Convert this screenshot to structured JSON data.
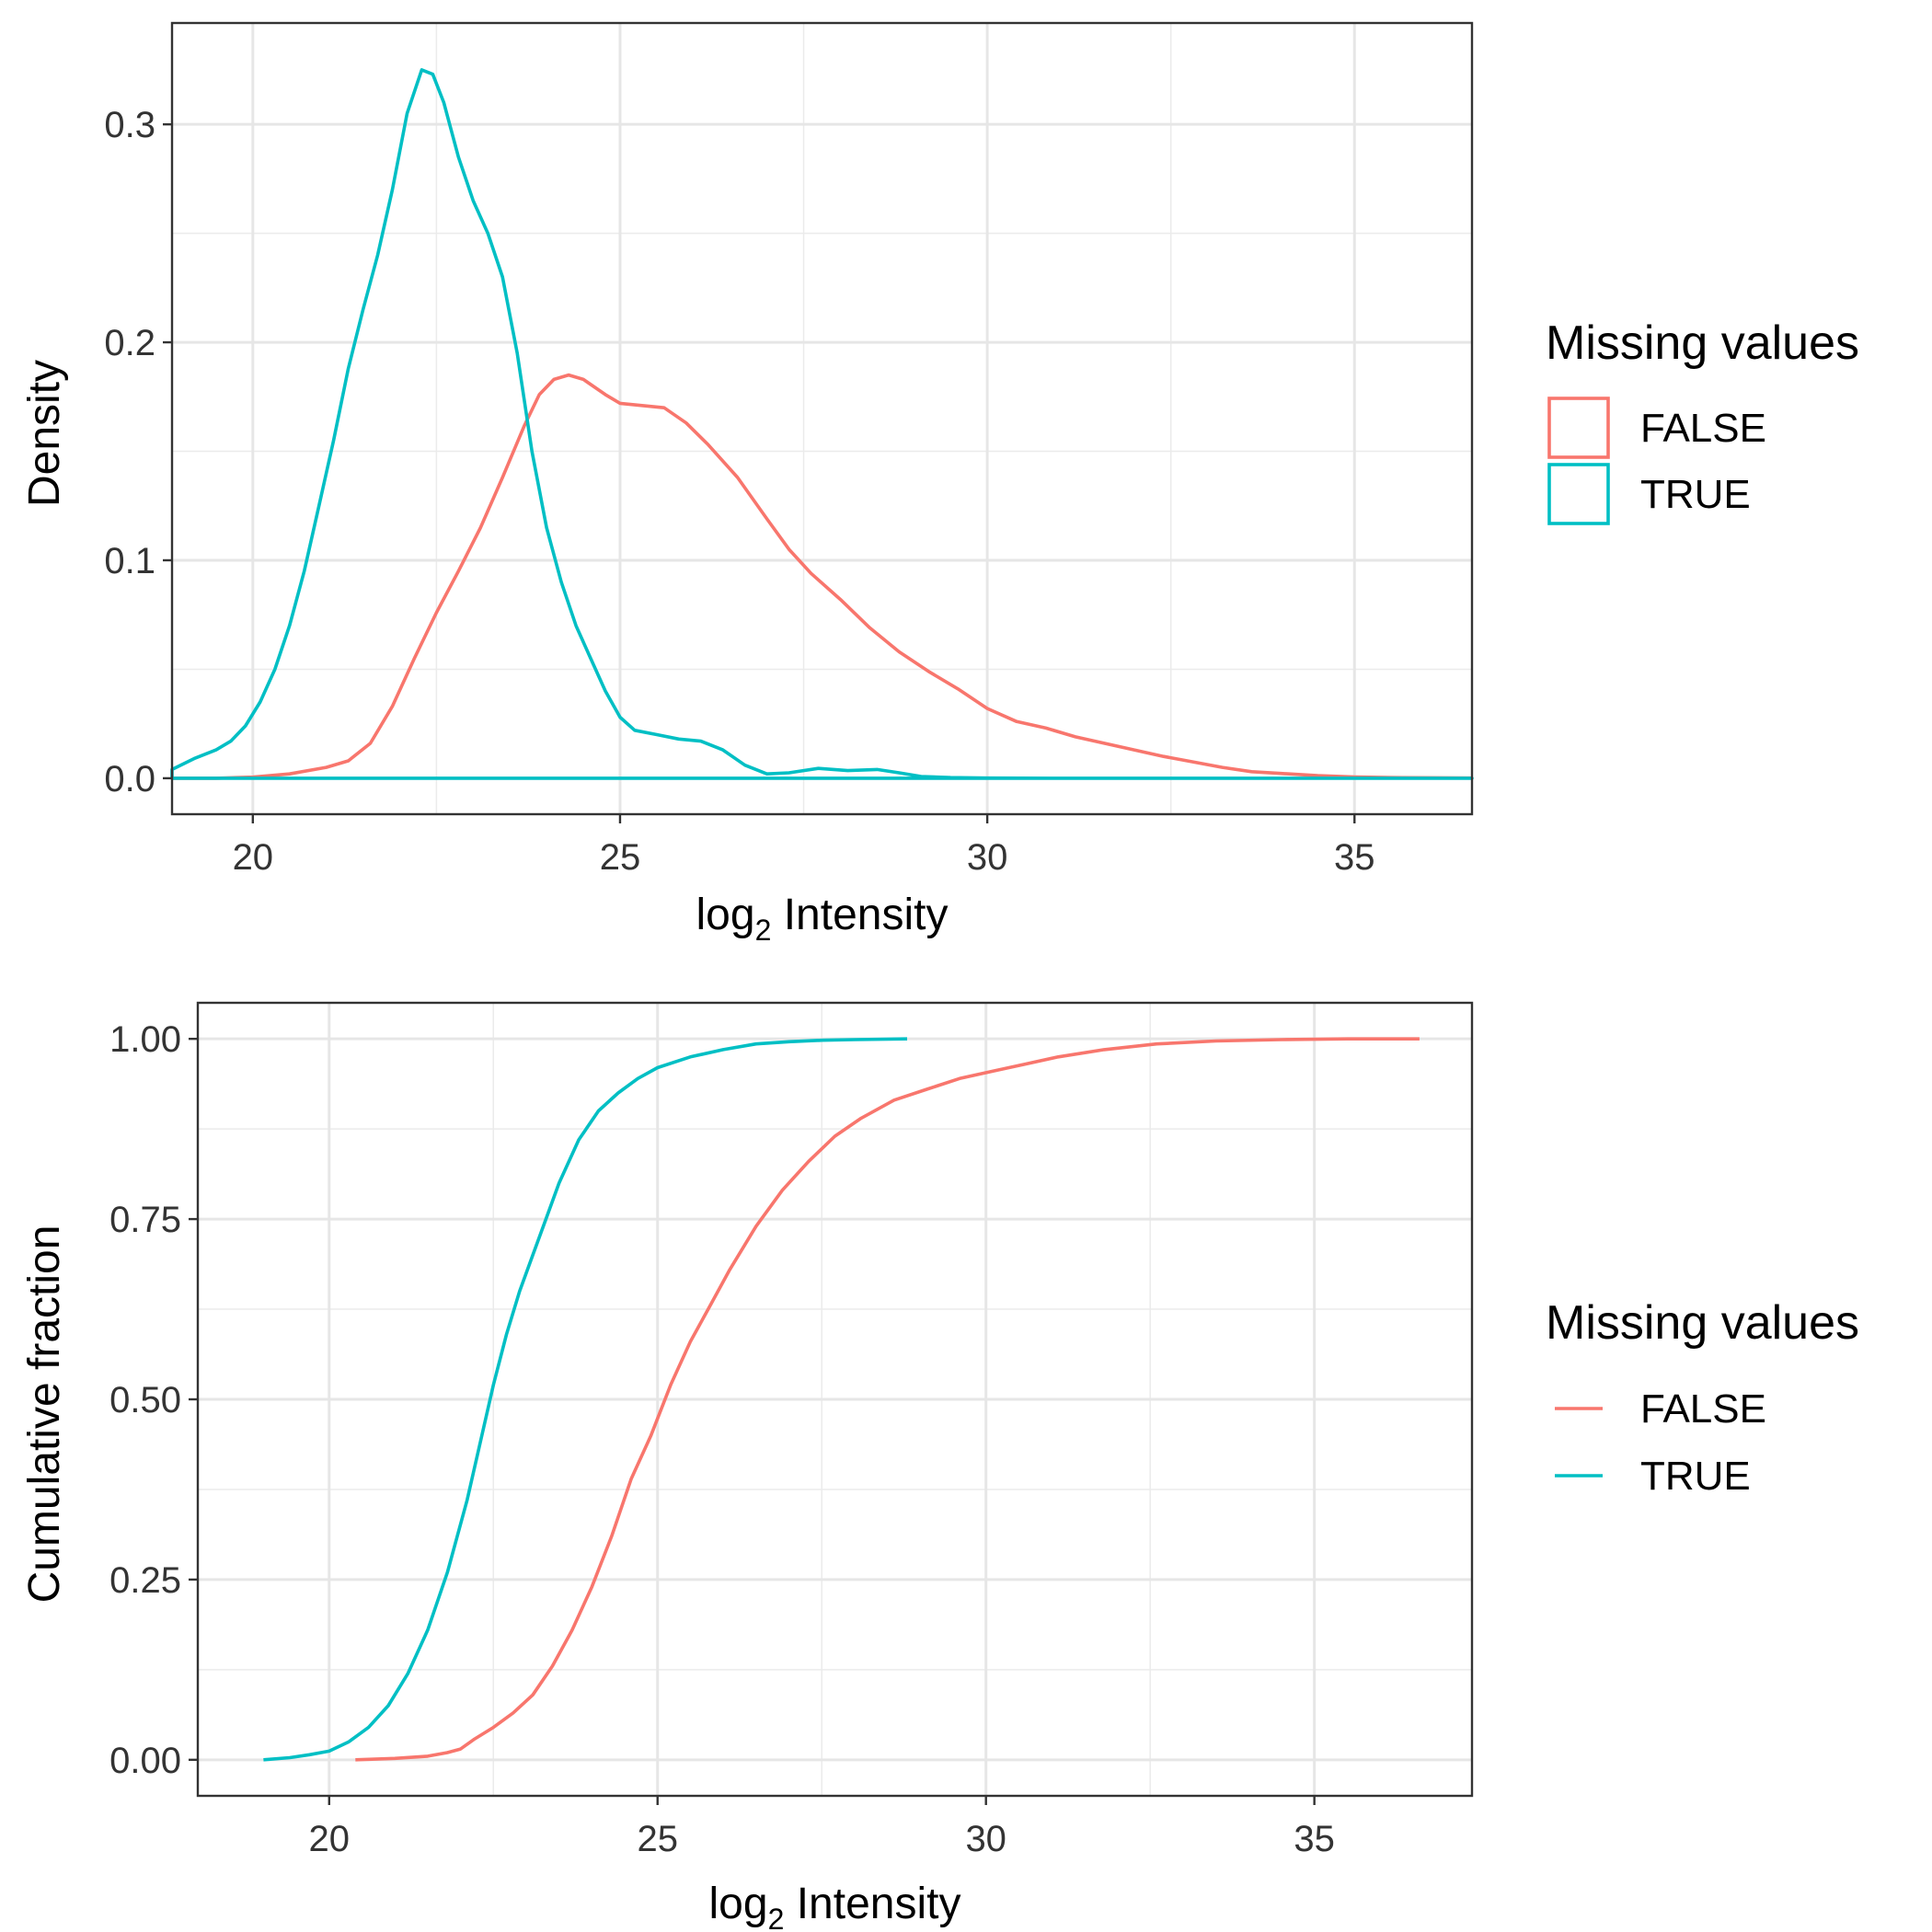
{
  "colors": {
    "FALSE": "#F8766D",
    "TRUE": "#00BFC4"
  },
  "chart_data": [
    {
      "type": "line",
      "variant": "density",
      "xlabel": {
        "prefix": "log",
        "subscript": "2",
        "suffix": " Intensity"
      },
      "ylabel": "Density",
      "xlim": [
        18.9,
        36.6
      ],
      "ylim": [
        0,
        0.33
      ],
      "xticks": [
        20,
        25,
        30,
        35
      ],
      "yticks": [
        0.0,
        0.1,
        0.2,
        0.3
      ],
      "ytick_labels": [
        "0.0",
        "0.1",
        "0.2",
        "0.3"
      ],
      "xtick_labels": [
        "20",
        "25",
        "30",
        "35"
      ],
      "grid": true,
      "legend": {
        "title": "Missing values",
        "key": "box",
        "placement": "right",
        "entries": [
          "FALSE",
          "TRUE"
        ]
      },
      "series": [
        {
          "name": "FALSE",
          "closed": false,
          "points": [
            [
              18.9,
              0.0
            ],
            [
              19.5,
              0.0
            ],
            [
              20.0,
              0.0005
            ],
            [
              20.5,
              0.002
            ],
            [
              21.0,
              0.005
            ],
            [
              21.3,
              0.008
            ],
            [
              21.6,
              0.016
            ],
            [
              21.9,
              0.033
            ],
            [
              22.2,
              0.055
            ],
            [
              22.5,
              0.076
            ],
            [
              22.8,
              0.095
            ],
            [
              23.1,
              0.115
            ],
            [
              23.4,
              0.138
            ],
            [
              23.7,
              0.162
            ],
            [
              23.9,
              0.176
            ],
            [
              24.1,
              0.183
            ],
            [
              24.3,
              0.185
            ],
            [
              24.5,
              0.183
            ],
            [
              24.8,
              0.176
            ],
            [
              25.0,
              0.172
            ],
            [
              25.3,
              0.171
            ],
            [
              25.6,
              0.17
            ],
            [
              25.9,
              0.163
            ],
            [
              26.2,
              0.153
            ],
            [
              26.6,
              0.138
            ],
            [
              27.0,
              0.119
            ],
            [
              27.3,
              0.105
            ],
            [
              27.6,
              0.094
            ],
            [
              28.0,
              0.082
            ],
            [
              28.4,
              0.069
            ],
            [
              28.8,
              0.058
            ],
            [
              29.2,
              0.049
            ],
            [
              29.6,
              0.041
            ],
            [
              30.0,
              0.032
            ],
            [
              30.4,
              0.026
            ],
            [
              30.8,
              0.023
            ],
            [
              31.2,
              0.019
            ],
            [
              31.6,
              0.016
            ],
            [
              32.0,
              0.013
            ],
            [
              32.4,
              0.01
            ],
            [
              32.8,
              0.0075
            ],
            [
              33.2,
              0.005
            ],
            [
              33.6,
              0.003
            ],
            [
              34.0,
              0.0022
            ],
            [
              34.5,
              0.0012
            ],
            [
              35.0,
              0.0006
            ],
            [
              35.5,
              0.0003
            ],
            [
              36.0,
              0.0002
            ],
            [
              36.6,
              0.0001
            ]
          ]
        },
        {
          "name": "TRUE",
          "closed": true,
          "points": [
            [
              18.9,
              0.0
            ],
            [
              18.9,
              0.004
            ],
            [
              19.2,
              0.009
            ],
            [
              19.5,
              0.013
            ],
            [
              19.7,
              0.017
            ],
            [
              19.9,
              0.024
            ],
            [
              20.1,
              0.035
            ],
            [
              20.3,
              0.05
            ],
            [
              20.5,
              0.07
            ],
            [
              20.7,
              0.095
            ],
            [
              20.9,
              0.125
            ],
            [
              21.1,
              0.155
            ],
            [
              21.3,
              0.188
            ],
            [
              21.5,
              0.215
            ],
            [
              21.7,
              0.24
            ],
            [
              21.9,
              0.27
            ],
            [
              22.1,
              0.305
            ],
            [
              22.3,
              0.325
            ],
            [
              22.45,
              0.323
            ],
            [
              22.6,
              0.31
            ],
            [
              22.8,
              0.285
            ],
            [
              23.0,
              0.265
            ],
            [
              23.2,
              0.25
            ],
            [
              23.4,
              0.23
            ],
            [
              23.6,
              0.195
            ],
            [
              23.8,
              0.15
            ],
            [
              24.0,
              0.115
            ],
            [
              24.2,
              0.09
            ],
            [
              24.4,
              0.07
            ],
            [
              24.6,
              0.055
            ],
            [
              24.8,
              0.04
            ],
            [
              25.0,
              0.028
            ],
            [
              25.2,
              0.022
            ],
            [
              25.5,
              0.02
            ],
            [
              25.8,
              0.018
            ],
            [
              26.1,
              0.017
            ],
            [
              26.4,
              0.013
            ],
            [
              26.7,
              0.006
            ],
            [
              27.0,
              0.002
            ],
            [
              27.3,
              0.0025
            ],
            [
              27.7,
              0.0045
            ],
            [
              28.1,
              0.0035
            ],
            [
              28.5,
              0.004
            ],
            [
              28.8,
              0.0025
            ],
            [
              29.1,
              0.0008
            ],
            [
              29.5,
              0.0003
            ],
            [
              30.0,
              0.0001
            ],
            [
              31.0,
              0.0
            ],
            [
              33.0,
              0.0
            ],
            [
              36.6,
              0.0
            ],
            [
              18.9,
              0.0
            ]
          ]
        }
      ]
    },
    {
      "type": "line",
      "variant": "ecdf",
      "xlabel": {
        "prefix": "log",
        "subscript": "2",
        "suffix": " Intensity"
      },
      "ylabel": "Cumulative fraction",
      "xlim": [
        18.0,
        37.4
      ],
      "ylim": [
        0,
        1
      ],
      "xticks": [
        20,
        25,
        30,
        35
      ],
      "yticks": [
        0.0,
        0.25,
        0.5,
        0.75,
        1.0
      ],
      "ytick_labels": [
        "0.00",
        "0.25",
        "0.50",
        "0.75",
        "1.00"
      ],
      "xtick_labels": [
        "20",
        "25",
        "30",
        "35"
      ],
      "grid": true,
      "legend": {
        "title": "Missing values",
        "key": "line",
        "placement": "right",
        "entries": [
          "FALSE",
          "TRUE"
        ]
      },
      "series": [
        {
          "name": "FALSE",
          "points": [
            [
              20.4,
              0.0
            ],
            [
              21.0,
              0.002
            ],
            [
              21.5,
              0.005
            ],
            [
              21.8,
              0.01
            ],
            [
              22.0,
              0.015
            ],
            [
              22.2,
              0.028
            ],
            [
              22.5,
              0.045
            ],
            [
              22.8,
              0.065
            ],
            [
              23.1,
              0.09
            ],
            [
              23.4,
              0.13
            ],
            [
              23.7,
              0.18
            ],
            [
              24.0,
              0.24
            ],
            [
              24.3,
              0.31
            ],
            [
              24.6,
              0.39
            ],
            [
              24.9,
              0.45
            ],
            [
              25.2,
              0.52
            ],
            [
              25.5,
              0.58
            ],
            [
              25.8,
              0.63
            ],
            [
              26.1,
              0.68
            ],
            [
              26.5,
              0.74
            ],
            [
              26.9,
              0.79
            ],
            [
              27.3,
              0.83
            ],
            [
              27.7,
              0.865
            ],
            [
              28.1,
              0.89
            ],
            [
              28.6,
              0.915
            ],
            [
              29.1,
              0.93
            ],
            [
              29.6,
              0.945
            ],
            [
              30.1,
              0.955
            ],
            [
              30.6,
              0.965
            ],
            [
              31.1,
              0.975
            ],
            [
              31.8,
              0.985
            ],
            [
              32.6,
              0.993
            ],
            [
              33.5,
              0.997
            ],
            [
              34.5,
              0.999
            ],
            [
              35.5,
              1.0
            ],
            [
              36.6,
              1.0
            ]
          ]
        },
        {
          "name": "TRUE",
          "points": [
            [
              19.0,
              0.0
            ],
            [
              19.4,
              0.003
            ],
            [
              19.7,
              0.007
            ],
            [
              20.0,
              0.012
            ],
            [
              20.3,
              0.025
            ],
            [
              20.6,
              0.045
            ],
            [
              20.9,
              0.075
            ],
            [
              21.2,
              0.12
            ],
            [
              21.5,
              0.18
            ],
            [
              21.8,
              0.26
            ],
            [
              22.1,
              0.36
            ],
            [
              22.3,
              0.44
            ],
            [
              22.5,
              0.52
            ],
            [
              22.7,
              0.59
            ],
            [
              22.9,
              0.65
            ],
            [
              23.1,
              0.7
            ],
            [
              23.3,
              0.75
            ],
            [
              23.5,
              0.8
            ],
            [
              23.8,
              0.86
            ],
            [
              24.1,
              0.9
            ],
            [
              24.4,
              0.925
            ],
            [
              24.7,
              0.945
            ],
            [
              25.0,
              0.96
            ],
            [
              25.5,
              0.975
            ],
            [
              26.0,
              0.985
            ],
            [
              26.5,
              0.993
            ],
            [
              27.0,
              0.996
            ],
            [
              27.5,
              0.998
            ],
            [
              28.0,
              0.999
            ],
            [
              28.8,
              1.0
            ]
          ]
        }
      ]
    }
  ]
}
